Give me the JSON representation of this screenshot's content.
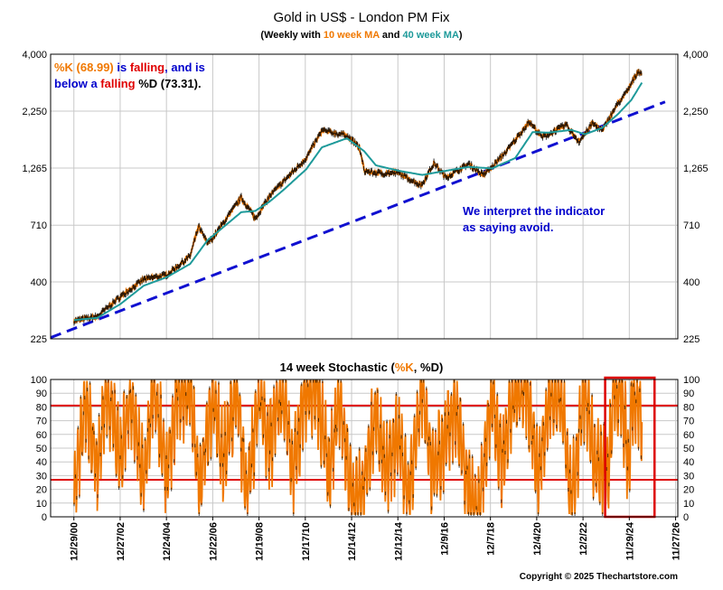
{
  "colors": {
    "price": "#f07800",
    "price_dark": "#000000",
    "ma40": "#1e9a9a",
    "trend": "#1010d0",
    "stoch": "#f07800",
    "ref_lines": "#dd0000",
    "highlight_box": "#dd0000",
    "text_orange": "#f07800",
    "text_red": "#e00000",
    "text_blue": "#0000cc",
    "text_teal": "#1e9a9a"
  },
  "header": {
    "title": "Gold in US$ - London PM Fix",
    "subtitle_pre": "(Weekly with ",
    "subtitle_ma10": "10 week MA",
    "subtitle_mid": " and ",
    "subtitle_ma40": "40 week MA",
    "subtitle_post": ")"
  },
  "annotation1": {
    "line1_k": "%K (68.99)",
    "line1_is": " is ",
    "line1_falling": "falling",
    "line1_rest": ", and is",
    "line2_pre": "below a ",
    "line2_falling": "falling",
    "line2_rest": " %D (73.31)."
  },
  "annotation2": {
    "line1": "We interpret the indicator",
    "line2": "as saying avoid."
  },
  "stoch_title": {
    "pre": "14 week Stochastic (",
    "k": "%K",
    "mid": ", %D",
    "post": ")"
  },
  "copyright": "Copyright © 2025 Thechartstore.com",
  "chart_data": [
    {
      "type": "line",
      "title": "Gold in US$ - London PM Fix",
      "y_scale": "log",
      "ylim": [
        225,
        4000
      ],
      "y_ticks": [
        {
          "value": 225,
          "label": "225"
        },
        {
          "value": 400,
          "label": "400"
        },
        {
          "value": 710,
          "label": "710"
        },
        {
          "value": 1265,
          "label": "1,265"
        },
        {
          "value": 2250,
          "label": "2,250"
        },
        {
          "value": 4000,
          "label": "4,000"
        }
      ],
      "xlim": [
        "1999-12-29",
        "2027-01-01"
      ],
      "grid": true,
      "series": [
        {
          "name": "",
          "role": "price",
          "x": [
            "2001-01-01",
            "2002-01-01",
            "2003-01-01",
            "2004-01-01",
            "2005-01-01",
            "2006-01-01",
            "2006-05-15",
            "2006-10-01",
            "2007-01-01",
            "2008-03-15",
            "2008-10-20",
            "2009-06-01",
            "2010-01-01",
            "2011-01-01",
            "2011-09-05",
            "2012-10-01",
            "2013-04-15",
            "2013-06-30",
            "2014-01-01",
            "2015-01-01",
            "2015-12-15",
            "2016-07-01",
            "2017-01-01",
            "2018-01-01",
            "2018-08-15",
            "2019-01-01",
            "2019-09-01",
            "2020-08-07",
            "2021-03-01",
            "2022-03-08",
            "2022-09-30",
            "2023-05-01",
            "2023-10-01",
            "2024-01-01",
            "2024-05-01",
            "2024-10-30",
            "2025-04-20",
            "2025-06-15"
          ],
          "y": [
            270,
            282,
            345,
            410,
            430,
            520,
            700,
            590,
            630,
            940,
            760,
            950,
            1100,
            1400,
            1850,
            1760,
            1560,
            1230,
            1200,
            1200,
            1060,
            1330,
            1150,
            1320,
            1180,
            1280,
            1520,
            2020,
            1720,
            1960,
            1650,
            1990,
            1840,
            2060,
            2350,
            2760,
            3380,
            3300
          ]
        },
        {
          "name": "",
          "role": "ma40",
          "x": [
            "2001-01-01",
            "2002-01-01",
            "2003-01-01",
            "2004-01-01",
            "2005-01-01",
            "2006-01-01",
            "2006-10-01",
            "2007-01-01",
            "2008-03-15",
            "2008-10-20",
            "2009-06-01",
            "2010-01-01",
            "2011-01-01",
            "2011-09-05",
            "2012-10-01",
            "2013-06-30",
            "2014-01-01",
            "2015-01-01",
            "2016-01-01",
            "2017-01-01",
            "2018-01-01",
            "2019-01-01",
            "2020-01-01",
            "2020-10-01",
            "2021-06-01",
            "2022-06-01",
            "2023-01-01",
            "2023-10-01",
            "2024-06-01",
            "2025-01-01",
            "2025-06-15"
          ],
          "y": [
            272,
            278,
            320,
            385,
            420,
            480,
            610,
            640,
            810,
            820,
            900,
            1010,
            1250,
            1560,
            1710,
            1500,
            1300,
            1230,
            1180,
            1230,
            1280,
            1260,
            1400,
            1820,
            1810,
            1860,
            1780,
            1900,
            2180,
            2520,
            3000
          ]
        }
      ],
      "trendline": {
        "x": [
          "2000-01-01",
          "2026-06-15"
        ],
        "y": [
          228,
          2470
        ]
      }
    },
    {
      "type": "line",
      "title": "14 week Stochastic (%K, %D)",
      "ylim": [
        0,
        100
      ],
      "y_ticks": [
        0,
        10,
        20,
        30,
        40,
        50,
        60,
        70,
        80,
        90,
        100
      ],
      "x_tick_labels": [
        "12/29/00",
        "12/27/02",
        "12/24/04",
        "12/22/06",
        "12/19/08",
        "12/17/10",
        "12/14/12",
        "12/12/14",
        "12/9/16",
        "12/7/18",
        "12/4/20",
        "12/2/22",
        "11/29/24",
        "11/27/26"
      ],
      "x_tick_dates": [
        "2000-12-29",
        "2002-12-27",
        "2004-12-24",
        "2006-12-22",
        "2008-12-19",
        "2010-12-17",
        "2012-12-14",
        "2014-12-12",
        "2016-12-09",
        "2018-12-07",
        "2020-12-04",
        "2022-12-02",
        "2024-11-29",
        "2026-11-27"
      ],
      "reference_lines": [
        81,
        27
      ],
      "highlight": {
        "x": [
          "2023-11-15",
          "2025-12-31"
        ],
        "y": [
          0,
          100
        ]
      },
      "series": [
        {
          "name": "%K",
          "x": [
            "2001-01-01",
            "2001-07-01",
            "2002-01-01",
            "2002-06-01",
            "2003-01-01",
            "2003-06-01",
            "2004-01-01",
            "2004-06-01",
            "2005-01-01",
            "2005-06-01",
            "2006-01-01",
            "2006-06-01",
            "2007-01-01",
            "2007-06-01",
            "2008-01-01",
            "2008-06-01",
            "2009-01-01",
            "2009-06-01",
            "2010-01-01",
            "2010-06-01",
            "2011-01-01",
            "2011-06-01",
            "2012-01-01",
            "2012-06-01",
            "2013-01-01",
            "2013-06-01",
            "2014-01-01",
            "2014-06-01",
            "2015-01-01",
            "2015-06-01",
            "2016-01-01",
            "2016-06-01",
            "2017-01-01",
            "2017-06-01",
            "2018-01-01",
            "2018-06-01",
            "2019-01-01",
            "2019-06-01",
            "2020-01-01",
            "2020-06-01",
            "2021-01-01",
            "2021-06-01",
            "2022-01-01",
            "2022-06-01",
            "2023-01-01",
            "2023-06-01",
            "2024-01-01",
            "2024-04-01",
            "2024-08-01",
            "2024-11-15",
            "2025-02-01",
            "2025-04-01",
            "2025-06-15"
          ],
          "y": [
            20,
            85,
            30,
            95,
            40,
            90,
            25,
            95,
            30,
            85,
            95,
            20,
            90,
            40,
            95,
            15,
            90,
            50,
            95,
            35,
            90,
            98,
            30,
            85,
            10,
            20,
            75,
            35,
            60,
            15,
            95,
            30,
            55,
            80,
            20,
            5,
            90,
            40,
            95,
            100,
            30,
            85,
            90,
            10,
            95,
            40,
            30,
            98,
            90,
            40,
            95,
            85,
            69
          ]
        }
      ]
    }
  ]
}
